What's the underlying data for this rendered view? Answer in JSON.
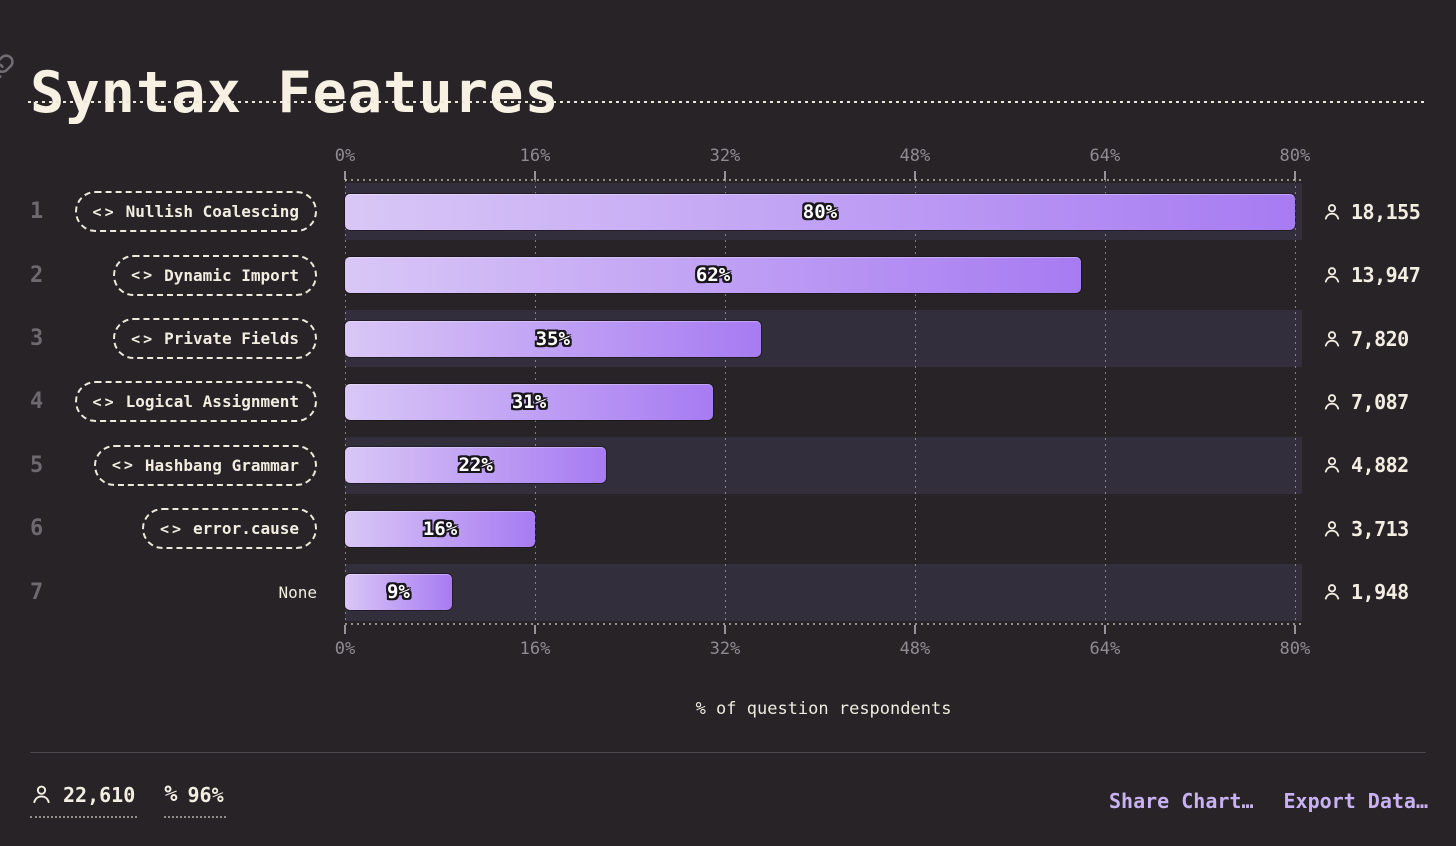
{
  "header": {
    "title": "Syntax Features"
  },
  "chart": {
    "code_icon_glyph": "<>",
    "x_ticks": [
      {
        "label": "0%",
        "pct": 0
      },
      {
        "label": "16%",
        "pct": 16
      },
      {
        "label": "32%",
        "pct": 32
      },
      {
        "label": "48%",
        "pct": 48
      },
      {
        "label": "64%",
        "pct": 64
      },
      {
        "label": "80%",
        "pct": 80
      }
    ],
    "axis_label": "% of question respondents",
    "rows": [
      {
        "rank": "1",
        "label": "Nullish Coalescing",
        "has_icon": true,
        "pct": 80,
        "pct_label": "80%",
        "count": "18,155"
      },
      {
        "rank": "2",
        "label": "Dynamic Import",
        "has_icon": true,
        "pct": 62,
        "pct_label": "62%",
        "count": "13,947"
      },
      {
        "rank": "3",
        "label": "Private Fields",
        "has_icon": true,
        "pct": 35,
        "pct_label": "35%",
        "count": "7,820"
      },
      {
        "rank": "4",
        "label": "Logical Assignment",
        "has_icon": true,
        "pct": 31,
        "pct_label": "31%",
        "count": "7,087"
      },
      {
        "rank": "5",
        "label": "Hashbang Grammar",
        "has_icon": true,
        "pct": 22,
        "pct_label": "22%",
        "count": "4,882"
      },
      {
        "rank": "6",
        "label": "error.cause",
        "has_icon": true,
        "pct": 16,
        "pct_label": "16%",
        "count": "3,713"
      },
      {
        "rank": "7",
        "label": "None",
        "has_icon": false,
        "pct": 9,
        "pct_label": "9%",
        "count": "1,948"
      }
    ]
  },
  "footer": {
    "respondents_total": "22,610",
    "percent_icon_glyph": "%",
    "completion": "96%",
    "share_label": "Share Chart…",
    "export_label": "Export Data…"
  },
  "colors": {
    "background": "#272327",
    "band": "#332e3c",
    "bar_gradient_start": "#d9c7f6",
    "bar_gradient_end": "#a77bf2",
    "accent_link": "#c9b2f1",
    "cream_text": "#f3eee1",
    "muted_text": "#8f8b90"
  },
  "chart_data": {
    "type": "bar",
    "orientation": "horizontal",
    "title": "Syntax Features",
    "categories": [
      "Nullish Coalescing",
      "Dynamic Import",
      "Private Fields",
      "Logical Assignment",
      "Hashbang Grammar",
      "error.cause",
      "None"
    ],
    "values": [
      80,
      62,
      35,
      31,
      22,
      16,
      9
    ],
    "value_unit": "%",
    "respondent_counts": [
      18155,
      13947,
      7820,
      7087,
      4882,
      3713,
      1948
    ],
    "xlabel": "% of question respondents",
    "x_ticks": [
      "0%",
      "16%",
      "32%",
      "48%",
      "64%",
      "80%"
    ],
    "xlim": [
      0,
      80.6
    ],
    "grid": true,
    "legend": false,
    "zebra_banding": "odd rows highlighted",
    "totals": {
      "respondents": 22610,
      "completion_pct": 96
    }
  }
}
